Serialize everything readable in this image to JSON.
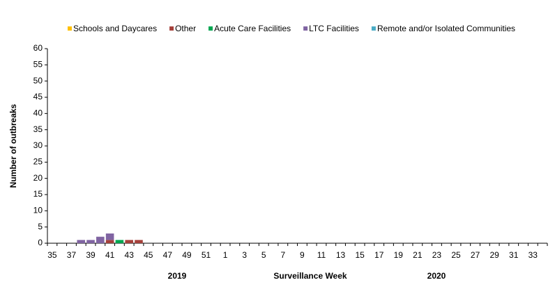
{
  "chart_data": {
    "type": "stacked_bar",
    "y_label": "Number of outbreaks",
    "x_label": "Surveillance Week",
    "annotations": [
      "2019",
      "2020"
    ],
    "categories": [
      "35",
      null,
      "37",
      null,
      "39",
      null,
      "41",
      null,
      "43",
      null,
      "45",
      null,
      "47",
      null,
      "49",
      null,
      "51",
      null,
      "1",
      null,
      "3",
      null,
      "5",
      null,
      "7",
      null,
      "9",
      null,
      "11",
      null,
      "13",
      null,
      "15",
      null,
      "17",
      null,
      "19",
      null,
      "21",
      null,
      "23",
      null,
      "25",
      null,
      "27",
      null,
      "29",
      null,
      "31",
      null,
      "33",
      null
    ],
    "series": [
      {
        "name": "Schools and Daycares",
        "color": "#ffc000",
        "values": [
          0,
          0,
          0,
          0,
          0,
          0,
          0,
          0,
          0,
          0,
          0,
          0,
          0,
          0,
          0,
          0,
          0,
          0,
          0,
          0,
          0,
          0,
          0,
          0,
          0,
          0,
          0,
          0,
          0,
          0,
          0,
          0,
          0,
          0,
          0,
          0,
          0,
          0,
          0,
          0,
          0,
          0,
          0,
          0,
          0,
          0,
          0,
          0,
          0,
          0,
          0,
          0
        ]
      },
      {
        "name": "Other",
        "color": "#a5403a",
        "values": [
          0,
          0,
          0,
          0,
          0,
          0,
          1,
          0,
          1,
          1,
          0,
          0,
          0,
          0,
          0,
          0,
          0,
          0,
          0,
          0,
          0,
          0,
          0,
          0,
          0,
          0,
          0,
          0,
          0,
          0,
          0,
          0,
          0,
          0,
          0,
          0,
          0,
          0,
          0,
          0,
          0,
          0,
          0,
          0,
          0,
          0,
          0,
          0,
          0,
          0,
          0,
          0
        ]
      },
      {
        "name": "Acute Care Facilities",
        "color": "#00a651",
        "values": [
          0,
          0,
          0,
          0,
          0,
          0,
          0,
          1,
          0,
          0,
          0,
          0,
          0,
          0,
          0,
          0,
          0,
          0,
          0,
          0,
          0,
          0,
          0,
          0,
          0,
          0,
          0,
          0,
          0,
          0,
          0,
          0,
          0,
          0,
          0,
          0,
          0,
          0,
          0,
          0,
          0,
          0,
          0,
          0,
          0,
          0,
          0,
          0,
          0,
          0,
          0,
          0
        ]
      },
      {
        "name": "LTC Facilities",
        "color": "#8064a2",
        "values": [
          0,
          0,
          0,
          1,
          1,
          2,
          2,
          0,
          0,
          0,
          0,
          0,
          0,
          0,
          0,
          0,
          0,
          0,
          0,
          0,
          0,
          0,
          0,
          0,
          0,
          0,
          0,
          0,
          0,
          0,
          0,
          0,
          0,
          0,
          0,
          0,
          0,
          0,
          0,
          0,
          0,
          0,
          0,
          0,
          0,
          0,
          0,
          0,
          0,
          0,
          0,
          0
        ]
      },
      {
        "name": "Remote and/or Isolated Communities",
        "color": "#4bacc6",
        "values": [
          0,
          0,
          0,
          0,
          0,
          0,
          0,
          0,
          0,
          0,
          0,
          0,
          0,
          0,
          0,
          0,
          0,
          0,
          0,
          0,
          0,
          0,
          0,
          0,
          0,
          0,
          0,
          0,
          0,
          0,
          0,
          0,
          0,
          0,
          0,
          0,
          0,
          0,
          0,
          0,
          0,
          0,
          0,
          0,
          0,
          0,
          0,
          0,
          0,
          0,
          0,
          0
        ]
      }
    ],
    "ylim": [
      0,
      60
    ],
    "yticks": [
      0,
      5,
      10,
      15,
      20,
      25,
      30,
      35,
      40,
      45,
      50,
      55,
      60
    ],
    "legend": "top"
  }
}
